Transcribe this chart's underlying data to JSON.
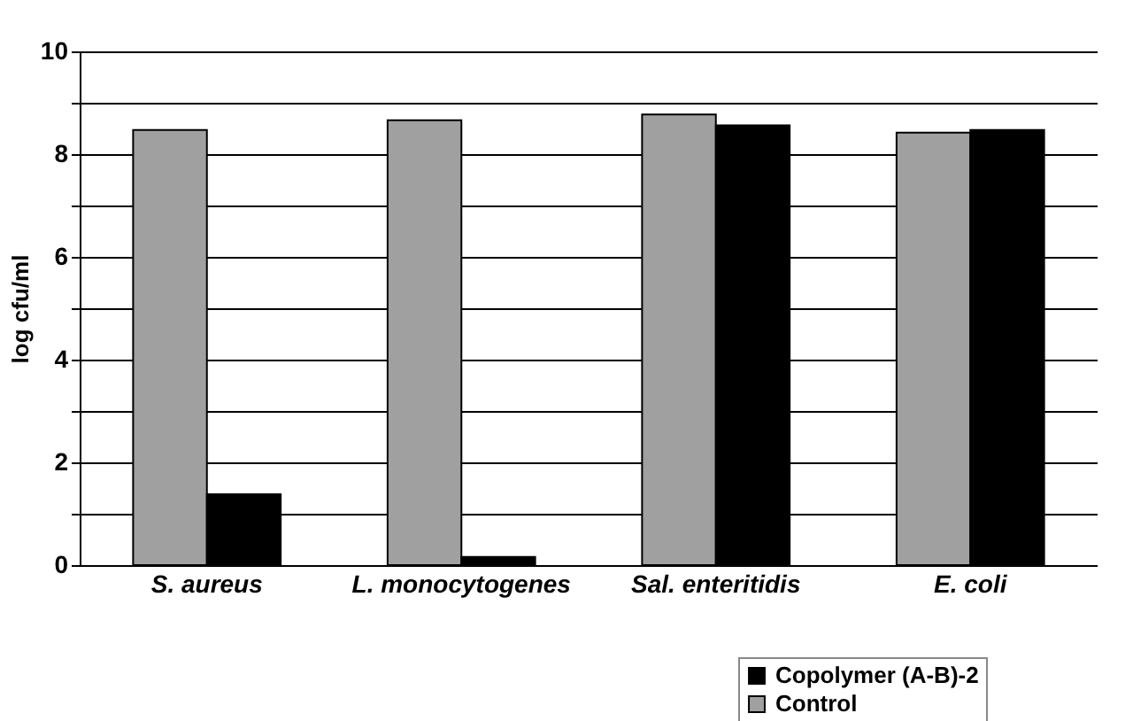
{
  "chart_data": {
    "type": "bar",
    "ylabel": "log cfu/ml",
    "categories": [
      "S. aureus",
      "L. monocytogenes",
      "Sal. enteritidis",
      "E. coli"
    ],
    "series": [
      {
        "name": "Control",
        "color": "#a0a0a0",
        "values": [
          8.47,
          8.66,
          8.77,
          8.42
        ]
      },
      {
        "name": "Copolymer (A-B)-2",
        "color": "#000000",
        "values": [
          1.38,
          0.16,
          8.56,
          8.47
        ]
      }
    ],
    "ylim": [
      0,
      10
    ],
    "yticks": [
      0,
      {
        "value": 1,
        "label": null
      },
      2,
      {
        "value": 3,
        "label": null
      },
      4,
      {
        "value": 5,
        "label": null
      },
      6,
      {
        "value": 7,
        "label": null
      },
      8,
      {
        "value": 9,
        "label": null
      },
      10
    ],
    "grid": "y",
    "legend": "bottom right"
  }
}
